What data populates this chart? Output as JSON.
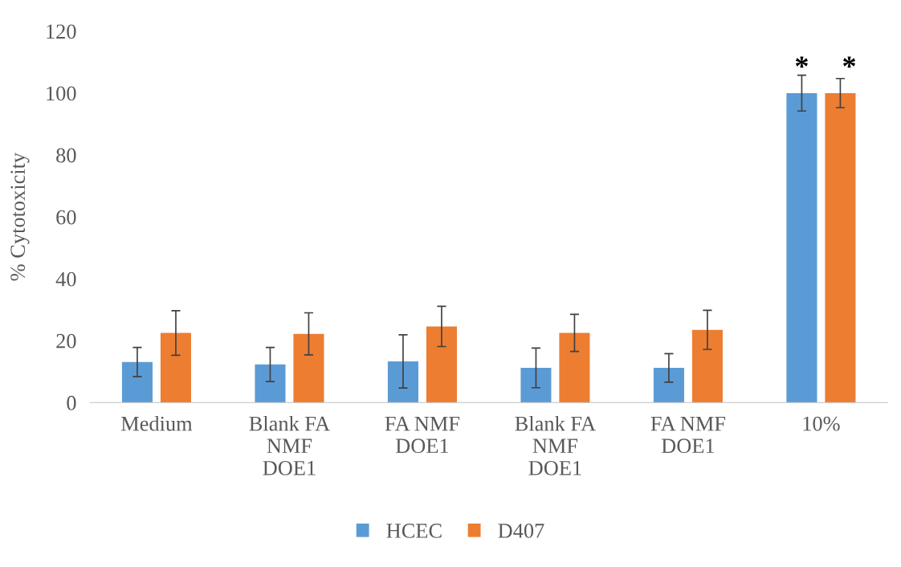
{
  "chart_data": {
    "type": "bar",
    "ylabel": "% Cytotoxicity",
    "categories": [
      "Medium",
      "Blank FA\nNMF\nDOE1",
      "FA NMF\nDOE1",
      "Blank FA\nNMF\nDOE1",
      "FA NMF\nDOE1",
      "10%"
    ],
    "series": [
      {
        "name": "HCEC",
        "color": "#5b9bd5",
        "values": [
          13.1,
          12.3,
          13.3,
          11.2,
          11.2,
          100
        ],
        "errors": [
          4.7,
          5.5,
          8.6,
          6.4,
          4.6,
          5.8
        ]
      },
      {
        "name": "D407",
        "color": "#ed7d31",
        "values": [
          22.5,
          22.2,
          24.6,
          22.5,
          23.5,
          100
        ],
        "errors": [
          7.2,
          6.8,
          6.5,
          6,
          6.3,
          4.7
        ]
      }
    ],
    "ylim": [
      0,
      120
    ],
    "yticks": [
      0,
      20,
      40,
      60,
      80,
      100,
      120
    ],
    "grid": false,
    "legend": "bottom",
    "annotations": [
      "*",
      "*"
    ]
  }
}
